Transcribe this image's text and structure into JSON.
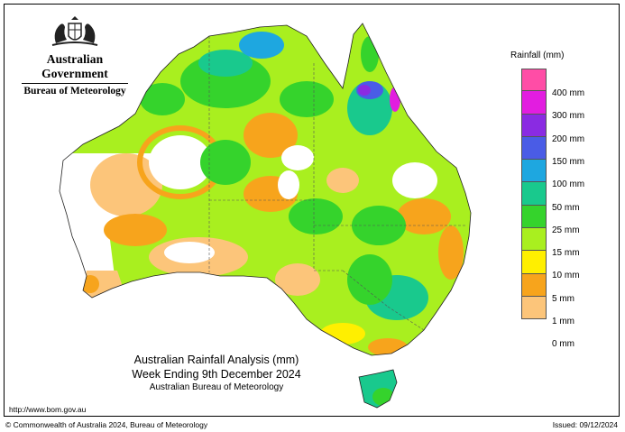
{
  "header": {
    "government": "Australian Government",
    "bureau": "Bureau of Meteorology",
    "crest_icon": "coat-of-arms-icon"
  },
  "legend": {
    "title": "Rainfall (mm)",
    "items": [
      {
        "label": "400 mm",
        "color": "#ff4da6"
      },
      {
        "label": "300 mm",
        "color": "#e21de0"
      },
      {
        "label": "200 mm",
        "color": "#8a2be2"
      },
      {
        "label": "150 mm",
        "color": "#4a5ce6"
      },
      {
        "label": "100 mm",
        "color": "#1ea7e0"
      },
      {
        "label": "50 mm",
        "color": "#19c98d"
      },
      {
        "label": "25 mm",
        "color": "#35d32c"
      },
      {
        "label": "15 mm",
        "color": "#a9ef1f"
      },
      {
        "label": "10 mm",
        "color": "#ffef00"
      },
      {
        "label": "5 mm",
        "color": "#f7a41c"
      },
      {
        "label": "1 mm",
        "color": "#fcc57a"
      },
      {
        "label": "0 mm",
        "color": "#ffffff"
      }
    ]
  },
  "title": {
    "line1": "Australian Rainfall Analysis (mm)",
    "line2": "Week Ending 9th December 2024",
    "line3": "Australian Bureau of Meteorology"
  },
  "url": "http://www.bom.gov.au",
  "footer": {
    "copyright": "© Commonwealth of Australia 2024, Bureau of Meteorology",
    "issued": "Issued: 09/12/2024"
  }
}
